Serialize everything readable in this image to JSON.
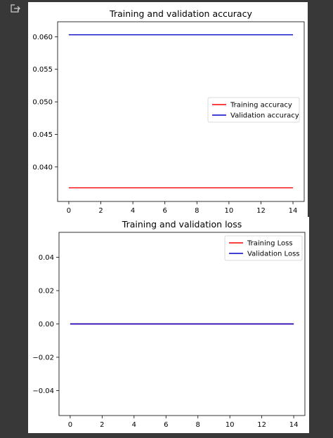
{
  "icons": {
    "output": "output-arrow-icon"
  },
  "colors": {
    "background": "#383838",
    "training": "#ff0000",
    "validation": "#0000c8"
  },
  "chart_data": [
    {
      "type": "line",
      "title": "Training and validation accuracy",
      "xlabel": "",
      "ylabel": "",
      "x": [
        0,
        1,
        2,
        3,
        4,
        5,
        6,
        7,
        8,
        9,
        10,
        11,
        12,
        13,
        14
      ],
      "xticks": [
        "0",
        "2",
        "4",
        "6",
        "8",
        "10",
        "12",
        "14"
      ],
      "yticks": [
        "0.040",
        "0.045",
        "0.050",
        "0.055",
        "0.060"
      ],
      "xlim": [
        -0.7,
        14.7
      ],
      "ylim": [
        0.0347,
        0.0623
      ],
      "grid": false,
      "legend_position": "center-right",
      "series": [
        {
          "name": "Training accuracy",
          "color": "#ff0000",
          "values": [
            0.0368,
            0.0368,
            0.0368,
            0.0368,
            0.0368,
            0.0368,
            0.0368,
            0.0368,
            0.0368,
            0.0368,
            0.0368,
            0.0368,
            0.0368,
            0.0368,
            0.0368
          ]
        },
        {
          "name": "Validation accuracy",
          "color": "#0000c8",
          "values": [
            0.0603,
            0.0603,
            0.0603,
            0.0603,
            0.0603,
            0.0603,
            0.0603,
            0.0603,
            0.0603,
            0.0603,
            0.0603,
            0.0603,
            0.0603,
            0.0603,
            0.0603
          ]
        }
      ]
    },
    {
      "type": "line",
      "title": "Training and validation loss",
      "xlabel": "",
      "ylabel": "",
      "x": [
        0,
        1,
        2,
        3,
        4,
        5,
        6,
        7,
        8,
        9,
        10,
        11,
        12,
        13,
        14
      ],
      "xticks": [
        "0",
        "2",
        "4",
        "6",
        "8",
        "10",
        "12",
        "14"
      ],
      "yticks": [
        "−0.04",
        "−0.02",
        "0.00",
        "0.02",
        "0.04"
      ],
      "xlim": [
        -0.7,
        14.7
      ],
      "ylim": [
        -0.055,
        0.055
      ],
      "grid": false,
      "legend_position": "upper-right",
      "series": [
        {
          "name": "Training Loss",
          "color": "#ff0000",
          "values": [
            0,
            0,
            0,
            0,
            0,
            0,
            0,
            0,
            0,
            0,
            0,
            0,
            0,
            0,
            0
          ]
        },
        {
          "name": "Validation Loss",
          "color": "#0000c8",
          "values": [
            0,
            0,
            0,
            0,
            0,
            0,
            0,
            0,
            0,
            0,
            0,
            0,
            0,
            0,
            0
          ]
        }
      ]
    }
  ]
}
